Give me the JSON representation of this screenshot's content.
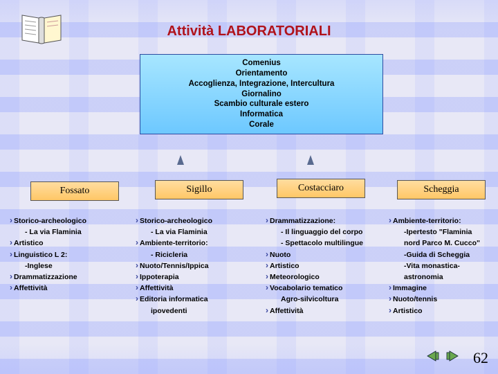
{
  "title": "Attività LABORATORIALI",
  "title_color": "#b0121a",
  "top_box": {
    "lines": [
      "Comenius",
      "Orientamento",
      "Accoglienza, Integrazione, Intercultura",
      "Giornalino",
      "Scambio culturale estero",
      "Informatica",
      "Corale"
    ],
    "bg_gradient": [
      "#a7e6ff",
      "#6dc8ff"
    ],
    "border": "#2e4ba0"
  },
  "labels": {
    "bg_gradient": [
      "#ffdda0",
      "#ffc766"
    ],
    "font": "Times New Roman",
    "items": [
      "Fossato",
      "Sigillo",
      "Costacciaro",
      "Scheggia"
    ]
  },
  "columns": [
    {
      "name": "fossato",
      "items": [
        {
          "t": "Storico-archeologico"
        },
        {
          "t": "- La via Flaminia",
          "sub": true
        },
        {
          "t": "Artistico"
        },
        {
          "t": "Linguistico L 2:"
        },
        {
          "t": "-Inglese",
          "sub": true
        },
        {
          "t": "Drammatizzazione"
        },
        {
          "t": "Affettività"
        }
      ]
    },
    {
      "name": "sigillo",
      "items": [
        {
          "t": "Storico-archeologico"
        },
        {
          "t": "- La via Flaminia",
          "sub": true
        },
        {
          "t": "Ambiente-territorio:"
        },
        {
          "t": "- Ricicleria",
          "sub": true
        },
        {
          "t": "Nuoto/Tennis/Ippica"
        },
        {
          "t": "Ippoterapia"
        },
        {
          "t": "Affettività"
        },
        {
          "t": "Editoria informatica"
        },
        {
          "t": "ipovedenti",
          "sub": true
        }
      ]
    },
    {
      "name": "costacciaro",
      "items": [
        {
          "t": "Drammatizzazione:"
        },
        {
          "t": "- Il linguaggio del corpo",
          "sub": true
        },
        {
          "t": "- Spettacolo multilingue",
          "sub": true
        },
        {
          "t": "Nuoto"
        },
        {
          "t": "Artistico"
        },
        {
          "t": "Meteorologico"
        },
        {
          "t": "Vocabolario tematico"
        },
        {
          "t": "Agro-silvicoltura",
          "sub": true
        },
        {
          "t": "Affettività"
        }
      ]
    },
    {
      "name": "scheggia",
      "items": [
        {
          "t": "Ambiente-territorio:"
        },
        {
          "t": "-Ipertesto \"Flaminia",
          "sub": true
        },
        {
          "t": "nord Parco M. Cucco\"",
          "sub": true
        },
        {
          "t": "-Guida di Scheggia",
          "sub": true
        },
        {
          "t": "-Vita monastica-",
          "sub": true
        },
        {
          "t": "astronomia",
          "sub": true
        },
        {
          "t": "Immagine"
        },
        {
          "t": "Nuoto/tennis"
        },
        {
          "t": "Artistico"
        }
      ]
    }
  ],
  "page_number": "62",
  "nav": {
    "prev_color": "#6aa84f",
    "next_color": "#6aa84f"
  },
  "arrow_color": "#596a8f",
  "body_bg": "#e8e8f5"
}
